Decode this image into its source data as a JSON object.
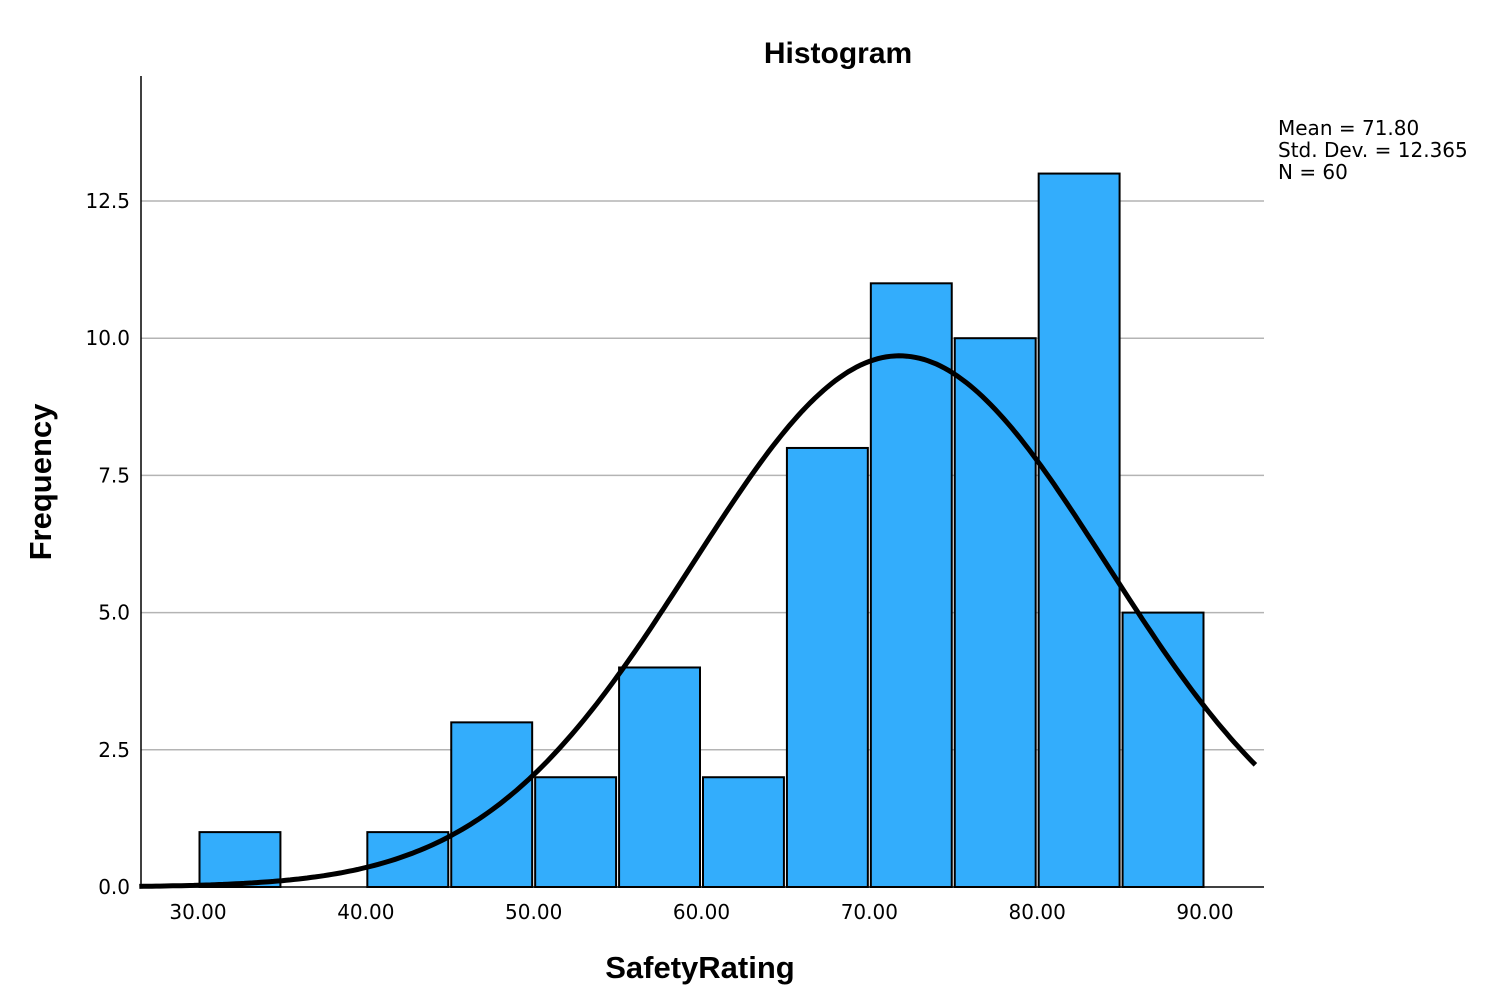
{
  "chart_data": {
    "type": "bar",
    "title": "Histogram",
    "xlabel": "SafetyRating",
    "ylabel": "Frequency",
    "xlim": [
      26.5,
      93.0
    ],
    "ylim": [
      0,
      14.75
    ],
    "x_ticks": [
      30,
      40,
      50,
      60,
      70,
      80,
      90
    ],
    "x_tick_labels": [
      "30.00",
      "40.00",
      "50.00",
      "60.00",
      "70.00",
      "80.00",
      "90.00"
    ],
    "y_ticks": [
      0,
      2.5,
      5,
      7.5,
      10,
      12.5
    ],
    "y_tick_labels": [
      "0.0",
      "2.5",
      "5.0",
      "7.5",
      "10.0",
      "12.5"
    ],
    "grid": true,
    "bins": [
      {
        "start": 30,
        "end": 35,
        "count": 1
      },
      {
        "start": 35,
        "end": 40,
        "count": 0
      },
      {
        "start": 40,
        "end": 45,
        "count": 1
      },
      {
        "start": 45,
        "end": 50,
        "count": 3
      },
      {
        "start": 50,
        "end": 55,
        "count": 2
      },
      {
        "start": 55,
        "end": 60,
        "count": 4
      },
      {
        "start": 60,
        "end": 65,
        "count": 2
      },
      {
        "start": 65,
        "end": 70,
        "count": 8
      },
      {
        "start": 70,
        "end": 75,
        "count": 11
      },
      {
        "start": 75,
        "end": 80,
        "count": 10
      },
      {
        "start": 80,
        "end": 85,
        "count": 13
      },
      {
        "start": 85,
        "end": 90,
        "count": 5
      }
    ],
    "bar_color": "#33adfc",
    "normal_curve": {
      "mean": 71.8,
      "std_dev": 12.365,
      "n": 60,
      "bin_width": 5,
      "color": "#000000"
    },
    "stats": {
      "mean_label": "Mean = 71.80",
      "std_label": "Std. Dev. = 12.365",
      "n_label": "N = 60"
    }
  }
}
